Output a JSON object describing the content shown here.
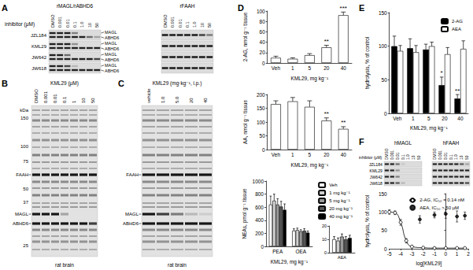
{
  "panels": [
    "A",
    "B",
    "C",
    "D",
    "E",
    "F"
  ],
  "blots": {
    "A": {
      "header": "inhibitor (μM)",
      "lanes": [
        "DMSO",
        "0.001",
        "0.01",
        "0.1",
        "1.0",
        "10",
        "50"
      ],
      "rows": [
        "JZL184",
        "KML29",
        "JW642",
        "JW618"
      ],
      "left": {
        "title": "rMAGL/rABHD6",
        "band_labels": [
          "MAGL",
          "ABHD6"
        ],
        "bands": [
          [
            [
              1,
              1,
              1,
              0.5,
              0,
              0,
              0
            ],
            [
              1,
              1,
              1,
              1,
              1,
              0.6,
              0.3
            ]
          ],
          [
            [
              1,
              1,
              1,
              0.4,
              0,
              0,
              0
            ],
            [
              1,
              1,
              1,
              1,
              1,
              1,
              1
            ]
          ],
          [
            [
              1,
              1,
              0.6,
              0,
              0,
              0,
              0
            ],
            [
              1,
              1,
              1,
              1,
              1,
              1,
              0.8
            ]
          ],
          [
            [
              1,
              1,
              0.8,
              0.2,
              0,
              0,
              0
            ],
            [
              1,
              1,
              1,
              1,
              1,
              1,
              1
            ]
          ]
        ]
      },
      "right": {
        "title": "rFAAH",
        "bands": [
          [
            [
              1,
              1,
              1,
              1,
              1,
              0.8,
              0.5
            ]
          ],
          [
            [
              1,
              1,
              1,
              1,
              1,
              1,
              1
            ]
          ],
          [
            [
              1,
              1,
              1,
              1,
              1,
              1,
              1
            ]
          ],
          [
            [
              1,
              1,
              1,
              1,
              1,
              1,
              0.9
            ]
          ]
        ]
      }
    },
    "F": {
      "header": "inhibitor (μM)",
      "lanes": [
        "DMSO",
        "0.001",
        "0.01",
        "0.1",
        "1.0",
        "10",
        "50"
      ],
      "rows": [
        "JZL184",
        "KML29",
        "JW642",
        "JW618"
      ],
      "left": {
        "title": "hMAGL",
        "bands": [
          [
            [
              1,
              1,
              0.6,
              0.1,
              0,
              0,
              0
            ]
          ],
          [
            [
              1,
              1,
              0.4,
              0,
              0,
              0,
              0
            ]
          ],
          [
            [
              1,
              1,
              0.5,
              0,
              0,
              0,
              0
            ]
          ],
          [
            [
              1,
              1,
              0.7,
              0.2,
              0,
              0,
              0
            ]
          ]
        ]
      },
      "right": {
        "title": "hFAAH",
        "bands": [
          [
            [
              1,
              1,
              1,
              1,
              1,
              0.7,
              0.3
            ]
          ],
          [
            [
              1,
              1,
              1,
              1,
              1,
              1,
              1
            ]
          ],
          [
            [
              1,
              1,
              1,
              1,
              1,
              1,
              1
            ]
          ],
          [
            [
              1,
              1,
              1,
              1,
              1,
              1,
              0.8
            ]
          ]
        ]
      }
    }
  },
  "gels": {
    "B": {
      "header": "KML29 (μM)",
      "lanes": [
        "DMSO",
        "0.001",
        "0.01",
        "0.1",
        "1",
        "10",
        "50"
      ],
      "kda_label": "kDa",
      "kda": [
        150,
        100,
        75,
        50,
        37,
        25
      ],
      "band_labels": [
        "FAAH",
        "MAGL",
        "ABHD6"
      ],
      "bands": [
        [
          1,
          1,
          1,
          1,
          1,
          1,
          1
        ],
        [
          1,
          1,
          1,
          0.3,
          0,
          0,
          0
        ],
        [
          1,
          1,
          1,
          1,
          1,
          1,
          0.8
        ]
      ],
      "footer": "rat brain"
    },
    "C": {
      "header": "KML29 (mg·kg⁻¹, i.p.)",
      "lanes": [
        "vehicle",
        "1.0",
        "5.0",
        "20",
        "40"
      ],
      "band_labels": [
        "FAAH",
        "MAGL",
        "ABHD6"
      ],
      "bands": [
        [
          1,
          1,
          1,
          1,
          1
        ],
        [
          1,
          0.8,
          0.5,
          0.2,
          0.1
        ],
        [
          1,
          1,
          1,
          1,
          1
        ]
      ],
      "footer": "rat brain"
    }
  },
  "chart_data": [
    {
      "type": "bar",
      "categories": [
        "Veh",
        "1",
        "5",
        "20",
        "40"
      ],
      "values": [
        10,
        8,
        15,
        30,
        92
      ],
      "errors": [
        3,
        2,
        3,
        4,
        6
      ],
      "color": "#ffffff",
      "xlabel": "KML29, mg kg⁻¹",
      "ylabel": "2-AG, nmol g⁻¹ tissue",
      "ylim": [
        0,
        100
      ],
      "yticks": [
        0,
        20,
        40,
        60,
        80,
        100
      ],
      "annotations": [
        {
          "category": "20",
          "text": "**"
        },
        {
          "category": "40",
          "text": "***"
        }
      ]
    },
    {
      "type": "bar",
      "categories": [
        "Veh",
        "1",
        "5",
        "20",
        "40"
      ],
      "values": [
        165,
        175,
        155,
        105,
        75
      ],
      "errors": [
        12,
        14,
        22,
        10,
        8
      ],
      "color": "#ffffff",
      "xlabel": "KML29, mg kg⁻¹",
      "ylabel": "AA, nmol g⁻¹ tissue",
      "ylim": [
        0,
        200
      ],
      "yticks": [
        0,
        50,
        100,
        150,
        200
      ],
      "annotations": [
        {
          "category": "20",
          "text": "**"
        },
        {
          "category": "40",
          "text": "**"
        }
      ]
    },
    {
      "type": "bar",
      "categories": [
        "PEA",
        "OEA"
      ],
      "series": [
        {
          "name": "Veh",
          "color": "#ffffff",
          "values": [
            640,
            240
          ],
          "errors": [
            130,
            30
          ]
        },
        {
          "name": "1 mg kg⁻¹",
          "color": "#d0d0d0",
          "values": [
            700,
            250
          ],
          "errors": [
            100,
            30
          ]
        },
        {
          "name": "5 mg kg⁻¹",
          "color": "#9a9a9a",
          "values": [
            640,
            230
          ],
          "errors": [
            90,
            25
          ]
        },
        {
          "name": "20 mg kg⁻¹",
          "color": "#555555",
          "values": [
            610,
            240
          ],
          "errors": [
            80,
            30
          ]
        },
        {
          "name": "40 mg kg⁻¹",
          "color": "#000000",
          "values": [
            560,
            210
          ],
          "errors": [
            90,
            25
          ]
        }
      ],
      "xlabel": "KML29, mg kg⁻¹",
      "ylabel": "NEAs, pmol g⁻¹ tissue",
      "ylim": [
        0,
        1000
      ],
      "yticks": [
        0,
        200,
        400,
        600,
        800,
        1000
      ],
      "legend": "top-right"
    },
    {
      "type": "bar",
      "categories": [
        "AEA"
      ],
      "series": [
        {
          "name": "Veh",
          "color": "#ffffff",
          "values": [
            10
          ],
          "errors": [
            2
          ]
        },
        {
          "name": "1 mg kg⁻¹",
          "color": "#d0d0d0",
          "values": [
            9
          ],
          "errors": [
            2
          ]
        },
        {
          "name": "5 mg kg⁻¹",
          "color": "#9a9a9a",
          "values": [
            12
          ],
          "errors": [
            2
          ]
        },
        {
          "name": "20 mg kg⁻¹",
          "color": "#555555",
          "values": [
            10
          ],
          "errors": [
            2
          ]
        },
        {
          "name": "40 mg kg⁻¹",
          "color": "#000000",
          "values": [
            11
          ],
          "errors": [
            2
          ]
        }
      ],
      "ylim": [
        0,
        20
      ],
      "yticks": [
        0,
        10,
        20
      ]
    },
    {
      "type": "bar",
      "categories": [
        "Veh",
        "1",
        "5",
        "20",
        "40"
      ],
      "series": [
        {
          "name": "2-AG",
          "color": "#000000",
          "values": [
            100,
            97,
            95,
            42,
            22
          ],
          "errors": [
            15,
            14,
            8,
            12,
            6
          ]
        },
        {
          "name": "AEA",
          "color": "#ffffff",
          "values": [
            93,
            91,
            100,
            88,
            96
          ],
          "errors": [
            8,
            10,
            6,
            10,
            12
          ]
        }
      ],
      "xlabel": "KML29, mg kg⁻¹",
      "ylabel": "hydrolysis, % of control",
      "ylim": [
        0,
        150
      ],
      "yticks": [
        0,
        50,
        100,
        150
      ],
      "legend": "top-right",
      "annotations": [
        {
          "category": "20",
          "series": "2-AG",
          "text": "*"
        },
        {
          "category": "40",
          "series": "2-AG",
          "text": "**"
        }
      ]
    },
    {
      "type": "scatter",
      "series": [
        {
          "name": "2-AG, IC₅₀ = 0.14 nM",
          "type": "line",
          "marker": "open circle",
          "color": "#000000",
          "x": [
            -5,
            -4.5,
            -4,
            -3.5,
            -3,
            -2,
            -1,
            0,
            1,
            1.7
          ],
          "values": [
            100,
            98,
            72,
            22,
            6,
            3,
            2,
            2,
            2,
            2
          ],
          "errors": [
            6,
            5,
            8,
            6,
            3,
            2,
            1,
            1,
            1,
            1
          ]
        },
        {
          "name": "AEA, IC₅₀ > 50 μM",
          "type": "scatter",
          "marker": "filled circle",
          "color": "#000000",
          "x": [
            -2.3,
            -1,
            0,
            1,
            1.7
          ],
          "values": [
            80,
            92,
            95,
            88,
            90
          ],
          "errors": [
            10,
            8,
            12,
            15,
            10
          ]
        }
      ],
      "xlabel": "log[KML29]",
      "ylabel": "hydrolysis, % of control",
      "xlim": [
        -5,
        2
      ],
      "xticks": [
        -5,
        -4,
        -3,
        -2,
        -1,
        0,
        1,
        2
      ],
      "ylim": [
        0,
        150
      ],
      "yticks": [
        0,
        50,
        100,
        150
      ],
      "legend": "top-right"
    }
  ]
}
